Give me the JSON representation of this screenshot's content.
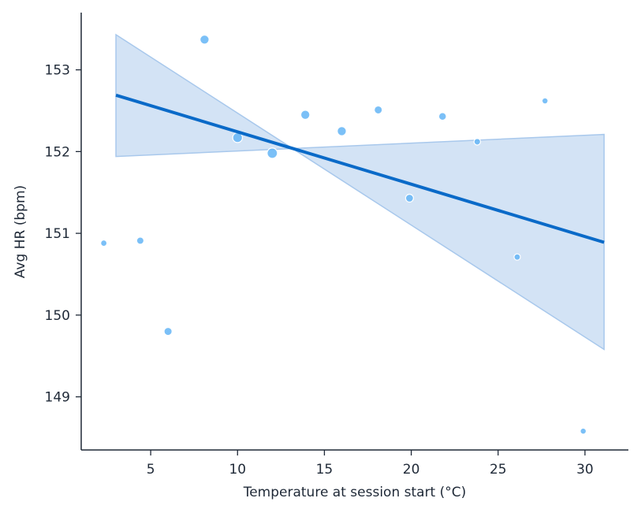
{
  "chart_data": {
    "type": "scatter",
    "title": "",
    "xlabel": "Temperature at session start (°C)",
    "ylabel": "Avg HR (bpm)",
    "xlim": [
      1,
      32.5
    ],
    "ylim": [
      148.35,
      153.7
    ],
    "x_ticks": [
      5,
      10,
      15,
      20,
      25,
      30
    ],
    "y_ticks": [
      149,
      150,
      151,
      152,
      153
    ],
    "grid": false,
    "colors": {
      "points": "#64b5f6",
      "points_edge": "#ffffff",
      "regression_line": "#0a6ac8",
      "confidence_band": "#a8c8ec",
      "axis": "#1f2937"
    },
    "points": [
      {
        "x": 2.3,
        "y": 150.88,
        "size": 1.0
      },
      {
        "x": 4.4,
        "y": 150.91,
        "size": 1.4
      },
      {
        "x": 6.0,
        "y": 149.8,
        "size": 1.8
      },
      {
        "x": 8.1,
        "y": 153.37,
        "size": 2.4
      },
      {
        "x": 10.0,
        "y": 152.17,
        "size": 2.8
      },
      {
        "x": 12.0,
        "y": 151.98,
        "size": 3.2
      },
      {
        "x": 13.9,
        "y": 152.45,
        "size": 2.4
      },
      {
        "x": 16.0,
        "y": 152.25,
        "size": 2.4
      },
      {
        "x": 18.1,
        "y": 152.51,
        "size": 1.8
      },
      {
        "x": 19.9,
        "y": 151.43,
        "size": 1.7
      },
      {
        "x": 21.8,
        "y": 152.43,
        "size": 1.6
      },
      {
        "x": 23.8,
        "y": 152.12,
        "size": 1.1
      },
      {
        "x": 26.1,
        "y": 150.71,
        "size": 1.0
      },
      {
        "x": 27.7,
        "y": 152.62,
        "size": 0.9
      },
      {
        "x": 29.9,
        "y": 148.58,
        "size": 0.9
      }
    ],
    "regression": {
      "x": [
        3.0,
        31.1
      ],
      "y": [
        152.69,
        150.89
      ],
      "ci_lower": [
        151.94,
        149.58
      ],
      "ci_upper": [
        153.43,
        152.21
      ]
    }
  }
}
